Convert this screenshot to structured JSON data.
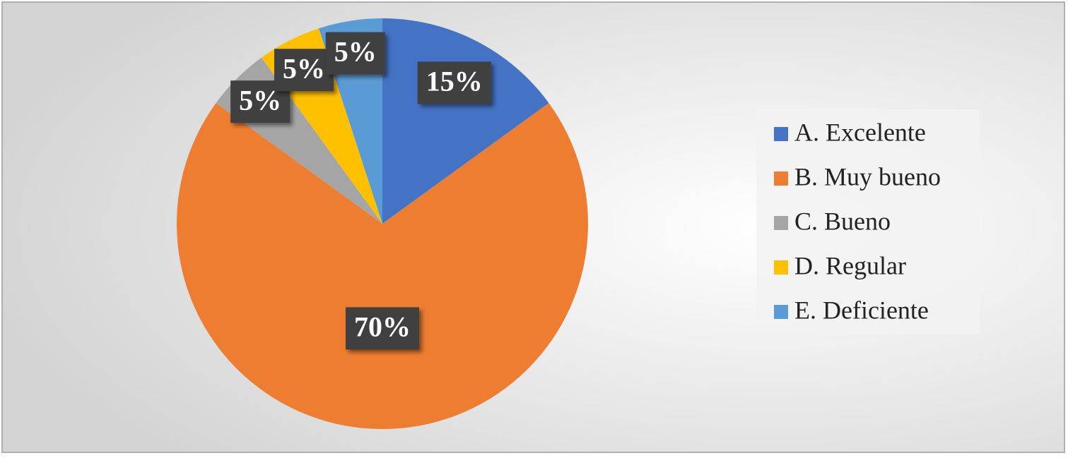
{
  "chart_data": {
    "type": "pie",
    "categories": [
      "A. Excelente",
      "B. Muy bueno",
      "C. Bueno",
      "D. Regular",
      "E. Deficiente"
    ],
    "values": [
      15,
      70,
      5,
      5,
      5
    ],
    "value_labels": [
      "15%",
      "70%",
      "5%",
      "5%",
      "5%"
    ],
    "colors": [
      "#4472c4",
      "#ed7d31",
      "#a5a5a5",
      "#ffc000",
      "#5b9bd5"
    ],
    "legend": "right"
  }
}
